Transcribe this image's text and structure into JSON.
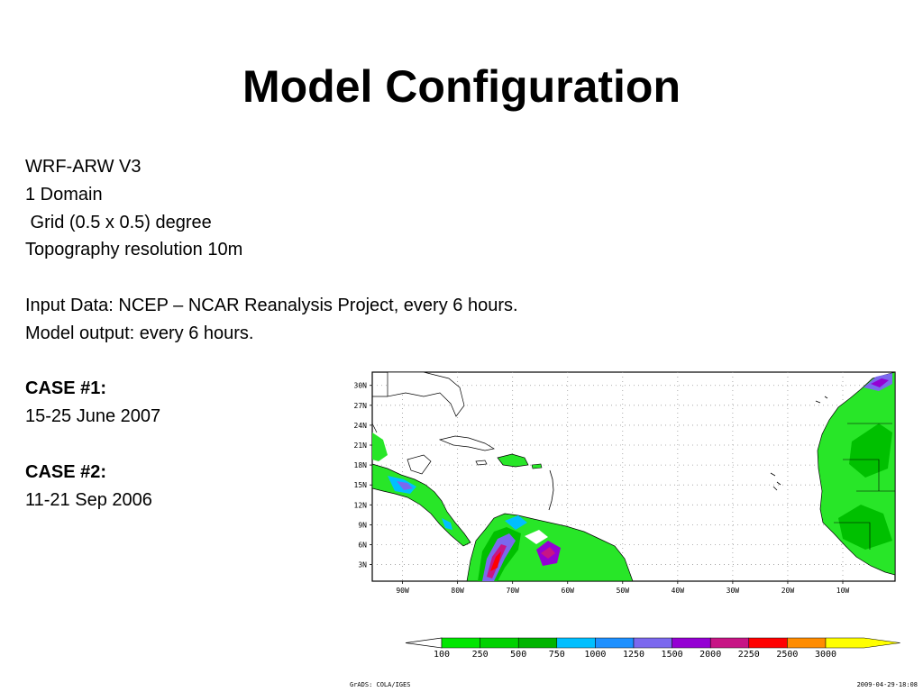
{
  "slide": {
    "title": "Model Configuration",
    "lines": [
      {
        "text": "WRF-ARW V3",
        "bold": false
      },
      {
        "text": "1 Domain",
        "bold": false
      },
      {
        "text": " Grid (0.5 x 0.5) degree",
        "bold": false
      },
      {
        "text": "Topography resolution 10m",
        "bold": false
      },
      {
        "text": "",
        "bold": false
      },
      {
        "text": "Input Data: NCEP – NCAR Reanalysis Project, every 6 hours.",
        "bold": false
      },
      {
        "text": "Model output: every 6 hours.",
        "bold": false
      },
      {
        "text": "",
        "bold": false
      },
      {
        "text": "CASE #1:",
        "bold": true
      },
      {
        "text": "15-25 June 2007",
        "bold": false
      },
      {
        "text": "",
        "bold": false
      },
      {
        "text": "CASE #2:",
        "bold": true
      },
      {
        "text": "11-21 Sep 2006",
        "bold": false
      }
    ]
  },
  "map": {
    "lat_labels": [
      "30N",
      "27N",
      "24N",
      "21N",
      "18N",
      "15N",
      "12N",
      "9N",
      "6N",
      "3N"
    ],
    "lon_labels": [
      "90W",
      "80W",
      "70W",
      "60W",
      "50W",
      "40W",
      "30W",
      "20W",
      "10W"
    ],
    "colorbar": {
      "labels": [
        "100",
        "250",
        "500",
        "750",
        "1000",
        "1250",
        "1500",
        "2000",
        "2250",
        "2500",
        "3000"
      ],
      "colors": [
        "#00e600",
        "#00d200",
        "#00b400",
        "#00bfff",
        "#1e90ff",
        "#7b68ee",
        "#9400d3",
        "#c71585",
        "#ff0000",
        "#ff8c00",
        "#ffff00"
      ]
    },
    "footer_left": "GrADS: COLA/IGES",
    "footer_right": "2009-04-29-18:08"
  }
}
